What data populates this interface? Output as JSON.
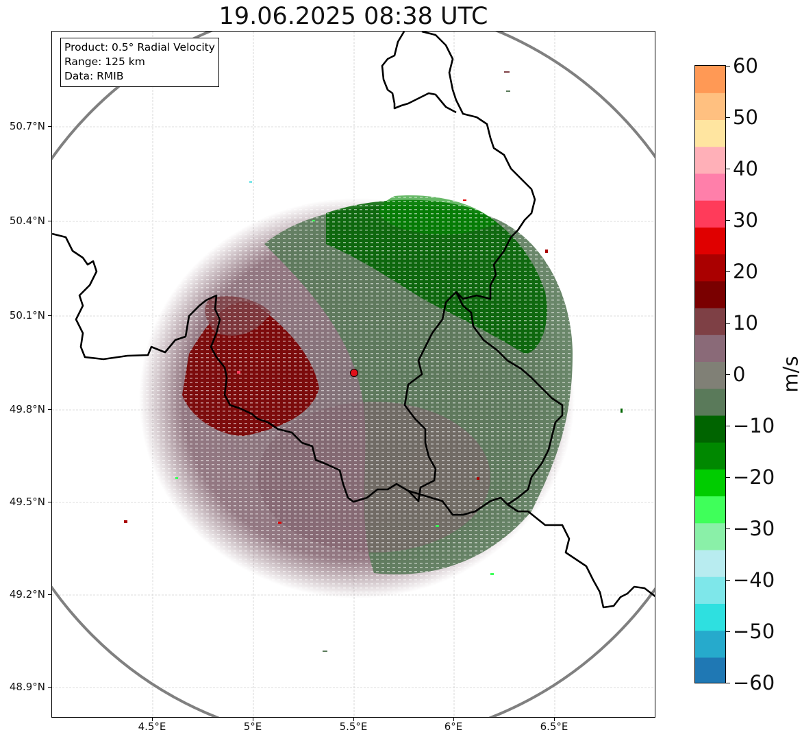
{
  "title": "19.06.2025 08:38 UTC",
  "info_box": {
    "product": "Product: 0.5° Radial Velocity",
    "range": "Range: 125 km",
    "data_source": "Data: RMIB"
  },
  "map": {
    "latitude_labels": [
      "50.7°N",
      "50.4°N",
      "50.1°N",
      "49.8°N",
      "49.5°N",
      "49.2°N",
      "48.9°N"
    ],
    "longitude_labels": [
      "4.5°E",
      "5°E",
      "5.5°E",
      "6°E",
      "6.5°E"
    ],
    "radar_site": {
      "lon": 5.5,
      "lat": 49.91,
      "color": "#e0101a"
    },
    "range_ring_color": "#808080",
    "border_color": "#000000",
    "grid": "on, dashed light gray"
  },
  "colorbar": {
    "unit": "m/s",
    "tick_labels": [
      "60",
      "50",
      "40",
      "30",
      "20",
      "10",
      "0",
      "−10",
      "−20",
      "−30",
      "−40",
      "−50",
      "−60"
    ],
    "min": -60,
    "max": 60,
    "colors": [
      "#1f78b4",
      "#26aacc",
      "#2ee0e0",
      "#7ee7ea",
      "#b8ecf0",
      "#8af0a8",
      "#3fff5a",
      "#00cc00",
      "#008800",
      "#006400",
      "#5a7a5a",
      "#808076",
      "#8a6a78",
      "#7e4045",
      "#7a0000",
      "#aa0000",
      "#e00000",
      "#ff3b5a",
      "#ff7faa",
      "#ffb0b8",
      "#ffe5a0",
      "#ffc080",
      "#ff9955"
    ]
  },
  "velocity_field": {
    "inbound_color": "#006400",
    "outbound_color": "#7a0000",
    "near_zero_outbound": "#80606c",
    "near_zero_inbound": "#5a7a5a"
  }
}
